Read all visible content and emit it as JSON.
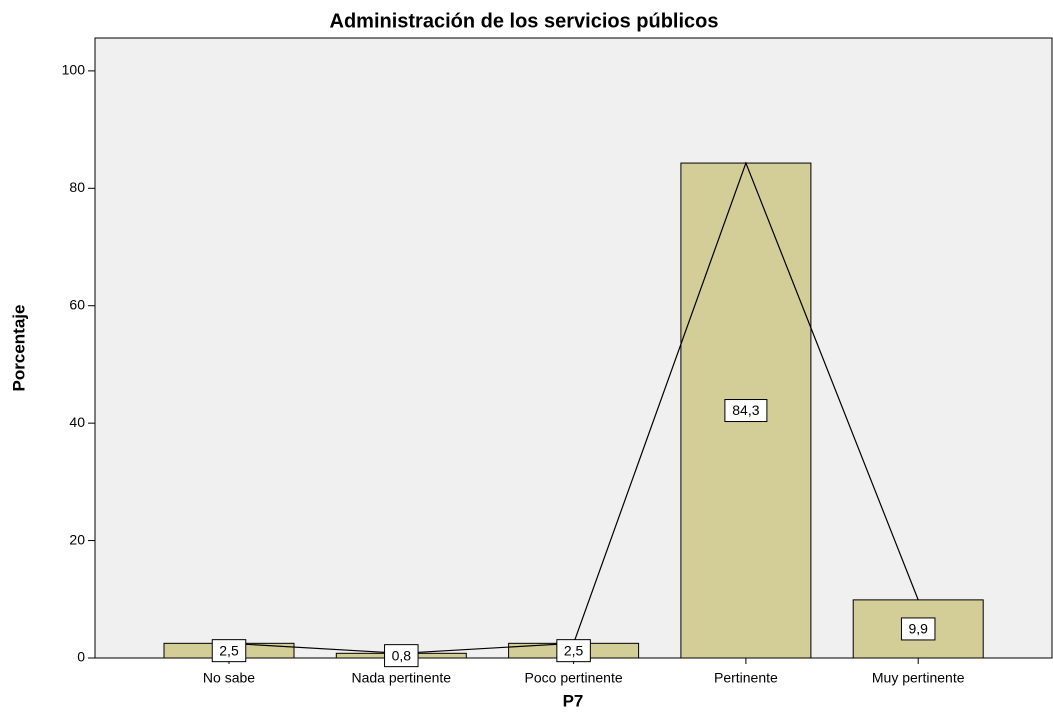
{
  "chart_data": {
    "type": "bar",
    "title": "Administración de los servicios públicos",
    "x_label": "P7",
    "y_label": "Porcentaje",
    "categories": [
      "No sabe",
      "Nada pertinente",
      "Poco pertinente",
      "Pertinente",
      "Muy pertinente"
    ],
    "values": [
      2.5,
      0.8,
      2.5,
      84.3,
      9.9
    ],
    "value_labels": [
      "2,5",
      "0,8",
      "2,5",
      "84,3",
      "9,9"
    ],
    "color": "#d3ce97",
    "line_overlay": true,
    "line_color": "#000000",
    "ylim": [
      0,
      105.6
    ],
    "yticks": [
      0,
      20,
      40,
      60,
      80,
      100
    ],
    "grid": false
  }
}
